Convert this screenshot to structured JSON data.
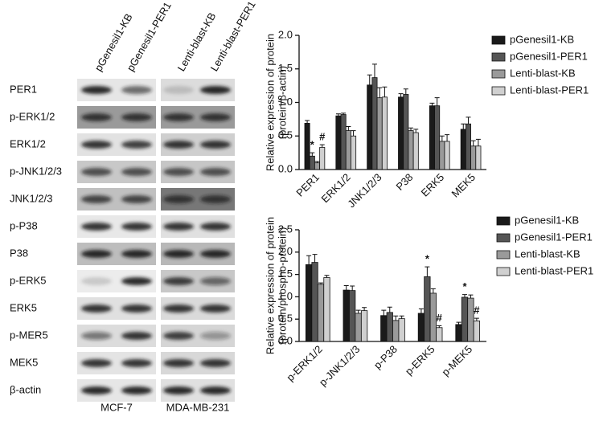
{
  "blot": {
    "columns": [
      "pGenesil1-KB",
      "pGenesil1-PER1",
      "Lenti-blast-KB",
      "Lenti-blast-PER1"
    ],
    "rows": [
      "PER1",
      "p-ERK1/2",
      "ERK1/2",
      "p-JNK1/2/3",
      "JNK1/2/3",
      "p-P38",
      "P38",
      "p-ERK5",
      "ERK5",
      "p-MER5",
      "MEK5",
      "β-actin"
    ],
    "cell_lines": [
      "MCF-7",
      "MDA-MB-231"
    ]
  },
  "chart_data": [
    {
      "type": "bar",
      "ylabel": [
        "Relative expression of protein",
        "(protein/β-actin)"
      ],
      "categories": [
        "PER1",
        "ERK1/2",
        "JNK1/2/3",
        "P38",
        "ERK5",
        "MEK5"
      ],
      "ylim": [
        0,
        2
      ],
      "yticks": [
        {
          "value": 0,
          "label": "0.0"
        },
        0.5,
        {
          "value": 1,
          "label": "1.0"
        },
        1.5,
        {
          "value": 2,
          "label": "2.0"
        }
      ],
      "series": [
        {
          "name": "pGenesil1-KB",
          "color": "#1a1a1a",
          "values": [
            0.69,
            0.8,
            1.26,
            1.08,
            0.95,
            0.6
          ],
          "errors": [
            0.04,
            0.03,
            0.15,
            0.05,
            0.04,
            0.08
          ],
          "annotations": [
            null,
            null,
            null,
            null,
            null,
            null
          ]
        },
        {
          "name": "pGenesil1-PER1",
          "color": "#555555",
          "values": [
            0.2,
            0.82,
            1.37,
            1.12,
            0.95,
            0.68
          ],
          "errors": [
            0.05,
            0.02,
            0.2,
            0.08,
            0.12,
            0.1
          ],
          "annotations": [
            "*",
            null,
            null,
            null,
            null,
            null
          ]
        },
        {
          "name": "Lenti-blast-KB",
          "color": "#9a9a9a",
          "values": [
            0.1,
            0.58,
            1.07,
            0.58,
            0.42,
            0.35
          ],
          "errors": [
            0.02,
            0.06,
            0.15,
            0.04,
            0.08,
            0.08
          ],
          "annotations": [
            null,
            null,
            null,
            null,
            null,
            null
          ]
        },
        {
          "name": "Lenti-blast-PER1",
          "color": "#d0d0d0",
          "values": [
            0.33,
            0.5,
            1.08,
            0.55,
            0.42,
            0.35
          ],
          "errors": [
            0.04,
            0.08,
            0.15,
            0.05,
            0.1,
            0.1
          ],
          "annotations": [
            "#",
            null,
            null,
            null,
            null,
            null
          ]
        }
      ]
    },
    {
      "type": "bar",
      "ylabel": [
        "Relative expression of protein",
        "(protein/phospho-protein)"
      ],
      "categories": [
        "p-ERK1/2",
        "p-JNK1/2/3",
        "p-P38",
        "p-ERK5",
        "p-MEK5"
      ],
      "ylim": [
        0,
        2.5
      ],
      "yticks": [
        {
          "value": 0,
          "label": "0.0"
        },
        0.5,
        {
          "value": 1,
          "label": "1.0"
        },
        1.5,
        {
          "value": 2,
          "label": "2.0"
        },
        2.5
      ],
      "series": [
        {
          "name": "pGenesil1-KB",
          "color": "#1a1a1a",
          "values": [
            1.72,
            1.15,
            0.58,
            0.63,
            0.38
          ],
          "errors": [
            0.2,
            0.1,
            0.12,
            0.1,
            0.05
          ],
          "annotations": [
            null,
            null,
            null,
            null,
            null
          ]
        },
        {
          "name": "pGenesil1-PER1",
          "color": "#555555",
          "values": [
            1.77,
            1.14,
            0.65,
            1.45,
            0.99
          ],
          "errors": [
            0.18,
            0.1,
            0.12,
            0.22,
            0.06
          ],
          "annotations": [
            null,
            null,
            null,
            "*",
            "*"
          ]
        },
        {
          "name": "Lenti-blast-KB",
          "color": "#9a9a9a",
          "values": [
            1.28,
            0.63,
            0.47,
            1.08,
            0.97
          ],
          "errors": [
            0.03,
            0.07,
            0.1,
            0.1,
            0.07
          ],
          "annotations": [
            null,
            null,
            null,
            null,
            null
          ]
        },
        {
          "name": "Lenti-blast-PER1",
          "color": "#d0d0d0",
          "values": [
            1.43,
            0.69,
            0.51,
            0.31,
            0.46
          ],
          "errors": [
            0.05,
            0.07,
            0.06,
            0.04,
            0.06
          ],
          "annotations": [
            null,
            null,
            null,
            "#",
            "#"
          ]
        }
      ]
    }
  ]
}
